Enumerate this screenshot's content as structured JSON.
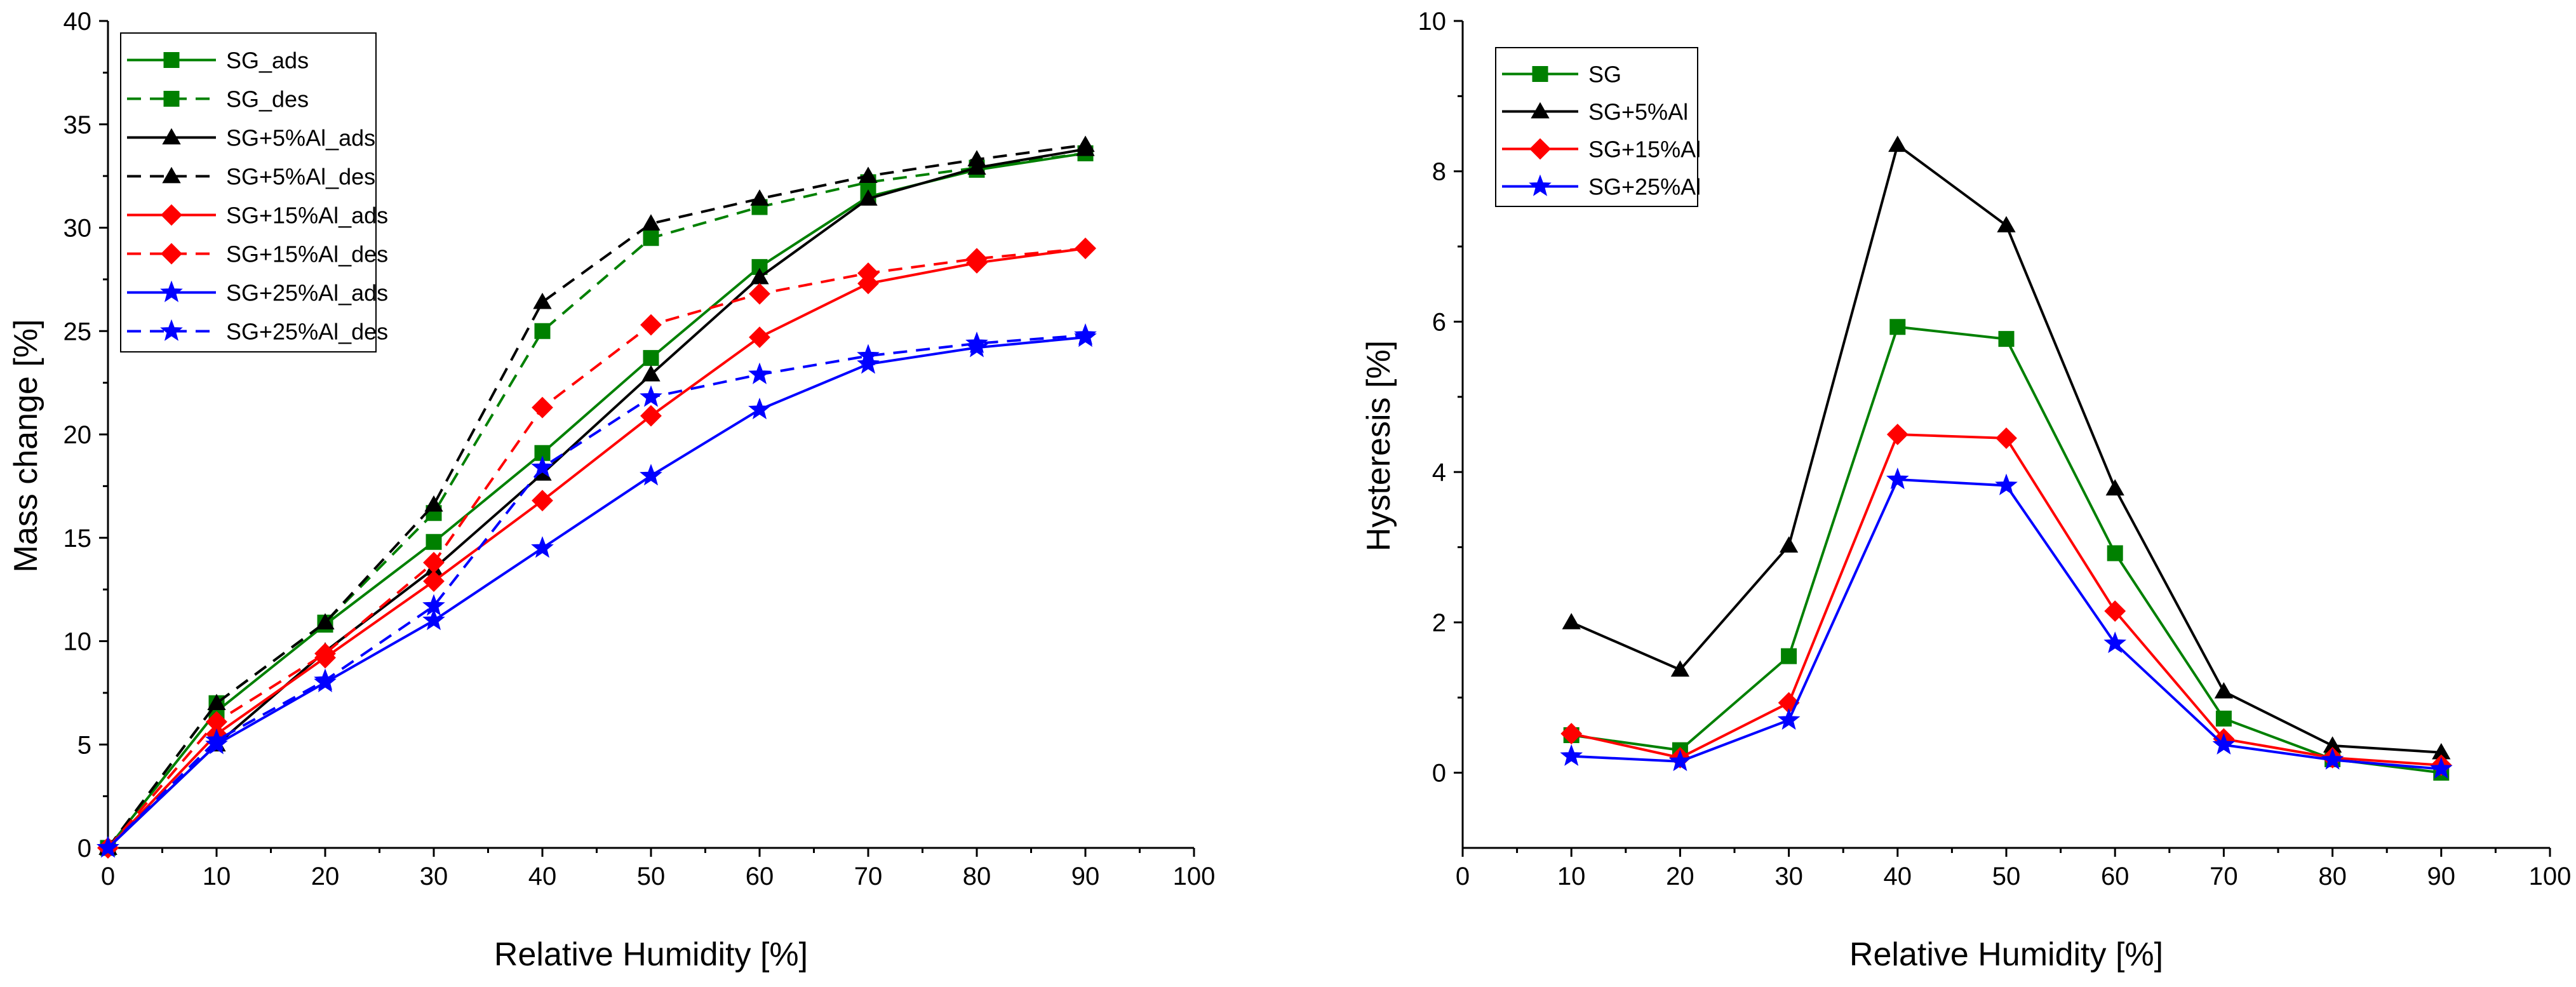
{
  "chart_data": [
    {
      "type": "line",
      "xlabel": "Relative Humidity [%]",
      "ylabel": "Mass change [%]",
      "xlim": [
        0,
        100
      ],
      "ylim": [
        0,
        40
      ],
      "xticks": [
        0,
        10,
        20,
        30,
        40,
        50,
        60,
        70,
        80,
        90,
        100
      ],
      "yticks": [
        0,
        5,
        10,
        15,
        20,
        25,
        30,
        35,
        40
      ],
      "legend_position": "top-left",
      "series": [
        {
          "name": "SG_ads",
          "color": "#008000",
          "dash": "solid",
          "marker": "square",
          "x": [
            0,
            10,
            20,
            30,
            40,
            50,
            60,
            70,
            80,
            90
          ],
          "y": [
            0,
            6.6,
            10.8,
            14.8,
            19.1,
            23.7,
            28.1,
            31.5,
            32.8,
            33.6
          ]
        },
        {
          "name": "SG_des",
          "color": "#008000",
          "dash": "dashed",
          "marker": "square",
          "x": [
            0,
            10,
            20,
            30,
            40,
            50,
            60,
            70,
            80,
            90
          ],
          "y": [
            0,
            7.0,
            10.9,
            16.2,
            25.0,
            29.5,
            31.0,
            32.2,
            32.9,
            33.6
          ]
        },
        {
          "name": "SG+5%Al_ads",
          "color": "#000000",
          "dash": "solid",
          "marker": "triangle",
          "x": [
            0,
            10,
            20,
            30,
            40,
            50,
            60,
            70,
            80,
            90
          ],
          "y": [
            0,
            5.0,
            9.5,
            13.5,
            18.1,
            22.9,
            27.6,
            31.4,
            32.9,
            33.8
          ]
        },
        {
          "name": "SG+5%Al_des",
          "color": "#000000",
          "dash": "dashed",
          "marker": "triangle",
          "x": [
            0,
            10,
            20,
            30,
            40,
            50,
            60,
            70,
            80,
            90
          ],
          "y": [
            0,
            7.0,
            10.9,
            16.6,
            26.4,
            30.2,
            31.4,
            32.5,
            33.3,
            34.0
          ]
        },
        {
          "name": "SG+15%Al_ads",
          "color": "#ff0000",
          "dash": "solid",
          "marker": "diamond",
          "x": [
            0,
            10,
            20,
            30,
            40,
            50,
            60,
            70,
            80,
            90
          ],
          "y": [
            0,
            5.5,
            9.2,
            12.9,
            16.8,
            20.9,
            24.7,
            27.3,
            28.3,
            29.0
          ]
        },
        {
          "name": "SG+15%Al_des",
          "color": "#ff0000",
          "dash": "dashed",
          "marker": "diamond",
          "x": [
            0,
            10,
            20,
            30,
            40,
            50,
            60,
            70,
            80,
            90
          ],
          "y": [
            0,
            6.1,
            9.4,
            13.8,
            21.3,
            25.3,
            26.8,
            27.8,
            28.5,
            29.0
          ]
        },
        {
          "name": "SG+25%Al_ads",
          "color": "#0000ff",
          "dash": "solid",
          "marker": "star",
          "x": [
            0,
            10,
            20,
            30,
            40,
            50,
            60,
            70,
            80,
            90
          ],
          "y": [
            0,
            5.0,
            8.0,
            11.0,
            14.5,
            18.0,
            21.2,
            23.4,
            24.2,
            24.7
          ]
        },
        {
          "name": "SG+25%Al_des",
          "color": "#0000ff",
          "dash": "dashed",
          "marker": "star",
          "x": [
            0,
            10,
            20,
            30,
            40,
            50,
            60,
            70,
            80,
            90
          ],
          "y": [
            0,
            5.2,
            8.1,
            11.7,
            18.4,
            21.8,
            22.9,
            23.8,
            24.4,
            24.8
          ]
        }
      ]
    },
    {
      "type": "line",
      "xlabel": "Relative Humidity [%]",
      "ylabel": "Hysteresis [%]",
      "xlim": [
        0,
        100
      ],
      "ylim": [
        -1,
        10
      ],
      "xticks": [
        0,
        10,
        20,
        30,
        40,
        50,
        60,
        70,
        80,
        90,
        100
      ],
      "yticks": [
        0,
        2,
        4,
        6,
        8,
        10
      ],
      "legend_position": "top-left",
      "series": [
        {
          "name": "SG",
          "color": "#008000",
          "dash": "solid",
          "marker": "square",
          "x": [
            10,
            20,
            30,
            40,
            50,
            60,
            70,
            80,
            90
          ],
          "y": [
            0.5,
            0.3,
            1.55,
            5.93,
            5.77,
            2.92,
            0.72,
            0.18,
            0.0
          ]
        },
        {
          "name": "SG+5%Al",
          "color": "#000000",
          "dash": "solid",
          "marker": "triangle",
          "x": [
            10,
            20,
            30,
            40,
            50,
            60,
            70,
            80,
            90
          ],
          "y": [
            2.0,
            1.37,
            3.02,
            8.35,
            7.28,
            3.78,
            1.08,
            0.36,
            0.27
          ]
        },
        {
          "name": "SG+15%Al",
          "color": "#ff0000",
          "dash": "solid",
          "marker": "diamond",
          "x": [
            10,
            20,
            30,
            40,
            50,
            60,
            70,
            80,
            90
          ],
          "y": [
            0.52,
            0.2,
            0.93,
            4.5,
            4.45,
            2.15,
            0.45,
            0.2,
            0.1
          ]
        },
        {
          "name": "SG+25%Al",
          "color": "#0000ff",
          "dash": "solid",
          "marker": "star",
          "x": [
            10,
            20,
            30,
            40,
            50,
            60,
            70,
            80,
            90
          ],
          "y": [
            0.22,
            0.15,
            0.7,
            3.9,
            3.82,
            1.72,
            0.37,
            0.17,
            0.05
          ]
        }
      ]
    }
  ]
}
